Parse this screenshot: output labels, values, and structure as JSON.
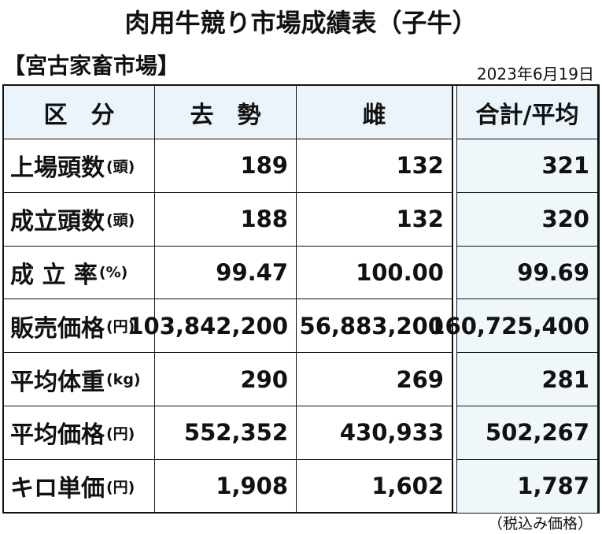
{
  "header": {
    "title": "肉用牛競り市場成績表（子牛）",
    "market": "【宮古家畜市場】",
    "date": "2023年6月19日"
  },
  "table": {
    "columns": [
      "区　分",
      "去　勢",
      "雌",
      "合計/平均"
    ],
    "rows": [
      {
        "label": "上場頭数",
        "unit": "(頭)",
        "values": [
          "189",
          "132",
          "321"
        ]
      },
      {
        "label": "成立頭数",
        "unit": "(頭)",
        "values": [
          "188",
          "132",
          "320"
        ]
      },
      {
        "label": "成 立 率",
        "unit": "(%)",
        "values": [
          "99.47",
          "100.00",
          "99.69"
        ]
      },
      {
        "label": "販売価格",
        "unit": "(円)",
        "values": [
          "103,842,200",
          "56,883,200",
          "160,725,400"
        ]
      },
      {
        "label": "平均体重",
        "unit": "(kg)",
        "values": [
          "290",
          "269",
          "281"
        ]
      },
      {
        "label": "平均価格",
        "unit": "(円)",
        "values": [
          "552,352",
          "430,933",
          "502,267"
        ]
      },
      {
        "label": "キロ単価",
        "unit": "(円)",
        "values": [
          "1,908",
          "1,602",
          "1,787"
        ]
      }
    ]
  },
  "footer": {
    "note": "（税込み価格）"
  }
}
